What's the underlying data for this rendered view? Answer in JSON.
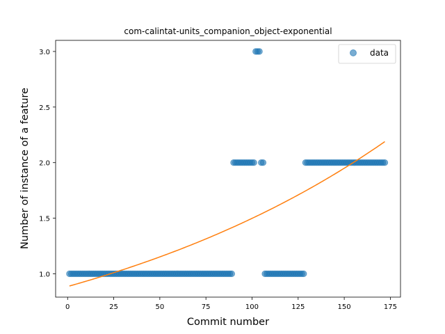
{
  "chart_data": {
    "type": "scatter",
    "title": "com-calintat-units_companion_object-exponential",
    "xlabel": "Commit number",
    "ylabel": "Number of instance of a feature",
    "xlim": [
      -6.5,
      180.5
    ],
    "ylim": [
      0.79,
      3.1
    ],
    "xticks": [
      0,
      25,
      50,
      75,
      100,
      125,
      150,
      175
    ],
    "yticks": [
      1.0,
      1.5,
      2.0,
      2.5,
      3.0
    ],
    "xtick_labels": [
      "0",
      "25",
      "50",
      "75",
      "100",
      "125",
      "150",
      "175"
    ],
    "ytick_labels": [
      "1.0",
      "1.5",
      "2.0",
      "2.5",
      "3.0"
    ],
    "grid": false,
    "legend": {
      "placement": "top-right",
      "entries": [
        "data"
      ]
    },
    "series": [
      {
        "name": "data",
        "kind": "scatter",
        "color": "#1f77b4",
        "segments": [
          {
            "x_start": 1,
            "x_end": 89,
            "y": 1
          },
          {
            "x_start": 90,
            "x_end": 101,
            "y": 2
          },
          {
            "x_start": 102,
            "x_end": 104,
            "y": 3
          },
          {
            "x_start": 105,
            "x_end": 106,
            "y": 2
          },
          {
            "x_start": 107,
            "x_end": 128,
            "y": 1
          },
          {
            "x_start": 129,
            "x_end": 172,
            "y": 2
          }
        ]
      },
      {
        "name": "",
        "kind": "line",
        "color": "#ff7f0e",
        "model": "exponential",
        "a": 0.8853,
        "b": 0.005263,
        "x_start": 1,
        "x_end": 172
      }
    ]
  }
}
